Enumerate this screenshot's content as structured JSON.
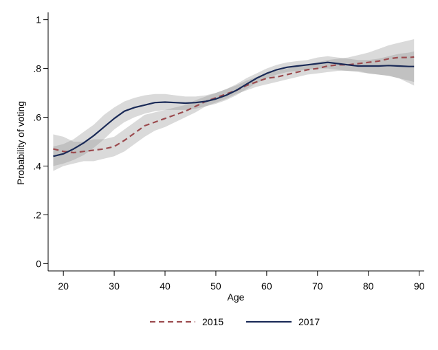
{
  "chart_data": {
    "type": "line",
    "title": "",
    "xlabel": "Age",
    "ylabel": "Probability of voting",
    "xlim": [
      17,
      91
    ],
    "ylim": [
      -0.03,
      1.03
    ],
    "x_ticks": [
      20,
      30,
      40,
      50,
      60,
      70,
      80,
      90
    ],
    "x_tick_labels": [
      "20",
      "30",
      "40",
      "50",
      "60",
      "70",
      "80",
      "90"
    ],
    "y_ticks": [
      0,
      0.2,
      0.4,
      0.6,
      0.8,
      1
    ],
    "y_tick_labels": [
      "0",
      ".2",
      ".4",
      ".6",
      ".8",
      "1"
    ],
    "grid": false,
    "legend_position": "bottom",
    "x": [
      18,
      20,
      22,
      24,
      26,
      28,
      30,
      32,
      34,
      36,
      38,
      40,
      42,
      44,
      46,
      48,
      50,
      52,
      54,
      56,
      58,
      60,
      62,
      64,
      66,
      68,
      70,
      72,
      74,
      76,
      78,
      80,
      82,
      84,
      86,
      88,
      89
    ],
    "series": [
      {
        "name": "2015",
        "style": "dashed",
        "color": "#9b4a4e",
        "values": [
          0.47,
          0.46,
          0.455,
          0.46,
          0.465,
          0.47,
          0.48,
          0.505,
          0.535,
          0.565,
          0.58,
          0.595,
          0.61,
          0.625,
          0.645,
          0.665,
          0.68,
          0.695,
          0.71,
          0.73,
          0.745,
          0.76,
          0.765,
          0.775,
          0.785,
          0.795,
          0.8,
          0.81,
          0.815,
          0.815,
          0.82,
          0.825,
          0.83,
          0.84,
          0.845,
          0.845,
          0.847
        ],
        "ci_lower": [
          0.38,
          0.4,
          0.41,
          0.42,
          0.42,
          0.43,
          0.44,
          0.46,
          0.49,
          0.52,
          0.545,
          0.56,
          0.58,
          0.6,
          0.62,
          0.645,
          0.66,
          0.675,
          0.695,
          0.71,
          0.725,
          0.735,
          0.745,
          0.755,
          0.765,
          0.775,
          0.78,
          0.785,
          0.79,
          0.79,
          0.79,
          0.78,
          0.775,
          0.77,
          0.76,
          0.74,
          0.73
        ],
        "ci_upper": [
          0.53,
          0.52,
          0.5,
          0.5,
          0.51,
          0.51,
          0.52,
          0.55,
          0.58,
          0.61,
          0.62,
          0.63,
          0.64,
          0.65,
          0.67,
          0.685,
          0.7,
          0.715,
          0.73,
          0.75,
          0.765,
          0.78,
          0.79,
          0.8,
          0.81,
          0.815,
          0.825,
          0.835,
          0.84,
          0.845,
          0.855,
          0.865,
          0.88,
          0.895,
          0.905,
          0.915,
          0.92
        ]
      },
      {
        "name": "2017",
        "style": "solid",
        "color": "#1a2a57",
        "values": [
          0.44,
          0.45,
          0.47,
          0.495,
          0.525,
          0.56,
          0.595,
          0.625,
          0.64,
          0.65,
          0.66,
          0.662,
          0.66,
          0.658,
          0.66,
          0.665,
          0.675,
          0.69,
          0.71,
          0.735,
          0.76,
          0.78,
          0.795,
          0.805,
          0.81,
          0.815,
          0.82,
          0.825,
          0.82,
          0.815,
          0.81,
          0.81,
          0.81,
          0.812,
          0.81,
          0.808,
          0.808
        ],
        "ci_lower": [
          0.4,
          0.41,
          0.425,
          0.445,
          0.475,
          0.51,
          0.55,
          0.58,
          0.6,
          0.615,
          0.625,
          0.63,
          0.63,
          0.63,
          0.635,
          0.645,
          0.655,
          0.67,
          0.69,
          0.715,
          0.74,
          0.76,
          0.775,
          0.785,
          0.79,
          0.795,
          0.8,
          0.8,
          0.795,
          0.79,
          0.785,
          0.78,
          0.775,
          0.77,
          0.76,
          0.75,
          0.745
        ],
        "ci_upper": [
          0.48,
          0.49,
          0.51,
          0.54,
          0.57,
          0.61,
          0.64,
          0.665,
          0.68,
          0.69,
          0.695,
          0.695,
          0.69,
          0.685,
          0.685,
          0.69,
          0.7,
          0.715,
          0.735,
          0.76,
          0.78,
          0.8,
          0.815,
          0.825,
          0.83,
          0.835,
          0.845,
          0.85,
          0.845,
          0.84,
          0.835,
          0.835,
          0.84,
          0.85,
          0.86,
          0.865,
          0.87
        ]
      }
    ]
  }
}
